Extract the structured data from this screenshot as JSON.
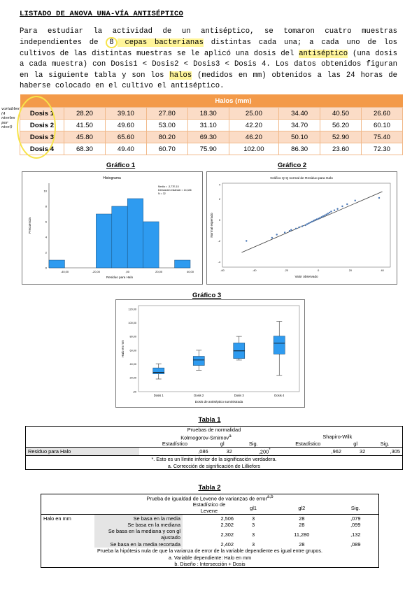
{
  "document": {
    "title": "LISTADO DE ANOVA UNA-VÍA ANTISÉPTICO",
    "intro": {
      "p1": "Para estudiar la actividad de un antiséptico, se tomaron cuatro muestras independientes de ",
      "p2": "8",
      "p3": " cepas bacterianas",
      "p4": " distintas cada una; a cada uno de los cultivos de las distintas muestras se le aplicó una dosis del ",
      "p5": "antiséptico",
      "p6": " (una dosis a cada muestra) con Dosis1 < Dosis2 < Dosis3 < Dosis 4. Los datos obtenidos figuran en la siguiente tabla y son los ",
      "p7": "halos",
      "p8": " (medidos en mm) obtenidos a las 24 horas de haberse colocado en el cultivo el antiséptico."
    },
    "handwritten_note": "variables (4 niveles por nivel)"
  },
  "halos_table": {
    "header": "Halos (mm)",
    "rows": [
      {
        "label": "Dosis 1",
        "values": [
          "28.20",
          "39.10",
          "27.80",
          "18.30",
          "25.00",
          "34.40",
          "40.50",
          "26.60"
        ]
      },
      {
        "label": "Dosis 2",
        "values": [
          "41.50",
          "49.60",
          "53.00",
          "31.10",
          "42.20",
          "34.70",
          "56.20",
          "60.10"
        ]
      },
      {
        "label": "Dosis 3",
        "values": [
          "45.80",
          "65.60",
          "80.20",
          "69.30",
          "46.20",
          "50.10",
          "52.90",
          "75.40"
        ]
      },
      {
        "label": "Dosis 4",
        "values": [
          "68.30",
          "49.40",
          "60.70",
          "75.90",
          "102.00",
          "86.30",
          "23.60",
          "72.30"
        ]
      }
    ]
  },
  "chart_data": [
    {
      "type": "bar",
      "caption": "Gráfico 1",
      "title": "Histograma",
      "xlabel": "Residuo para Halo",
      "ylabel": "Frecuencia",
      "legend": [
        "Media = -3,77E-15",
        "Desviación estándar = 14,346",
        "N = 32"
      ],
      "bin_edges": [
        -50,
        -40,
        -30,
        -20,
        -10,
        0,
        10,
        20,
        30,
        40
      ],
      "values": [
        1,
        0,
        0,
        7,
        8,
        9,
        6,
        0,
        1
      ],
      "xticks": [
        "-40,00",
        "-20,00",
        ",00",
        "20,00",
        "40,00"
      ],
      "yticks": [
        "0",
        "2",
        "4",
        "6",
        "8",
        "10"
      ],
      "ylim": [
        0,
        11
      ]
    },
    {
      "type": "scatter",
      "caption": "Gráfico 2",
      "title": "Gráfico Q-Q normal de Residuo para Halo",
      "xlabel": "Valor observado",
      "ylabel": "Normal esperado",
      "xticks": [
        "-60",
        "-40",
        "-20",
        "0",
        "20",
        "40"
      ],
      "yticks": [
        "-4",
        "-2",
        "0",
        "2",
        "4"
      ],
      "xlim": [
        -60,
        45
      ],
      "ylim": [
        -4.5,
        3.5
      ],
      "points": [
        [
          -45,
          -2
        ],
        [
          -29,
          -1.7
        ],
        [
          -26,
          -1.4
        ],
        [
          -21,
          -1.2
        ],
        [
          -18,
          -1.05
        ],
        [
          -17,
          -0.95
        ],
        [
          -14,
          -0.82
        ],
        [
          -12,
          -0.7
        ],
        [
          -10,
          -0.6
        ],
        [
          -8,
          -0.5
        ],
        [
          -7,
          -0.4
        ],
        [
          -6,
          -0.32
        ],
        [
          -5,
          -0.24
        ],
        [
          -4,
          -0.16
        ],
        [
          -3,
          -0.08
        ],
        [
          -2,
          0
        ],
        [
          -1,
          0.06
        ],
        [
          0,
          0.12
        ],
        [
          1,
          0.2
        ],
        [
          2,
          0.28
        ],
        [
          3,
          0.36
        ],
        [
          4,
          0.44
        ],
        [
          5,
          0.52
        ],
        [
          6,
          0.6
        ],
        [
          7,
          0.7
        ],
        [
          8,
          0.8
        ],
        [
          10,
          0.92
        ],
        [
          12,
          1.05
        ],
        [
          15,
          1.3
        ],
        [
          18,
          1.5
        ],
        [
          23,
          1.85
        ],
        [
          38,
          2.1
        ]
      ],
      "reference_line": [
        [
          -48,
          -3.1
        ],
        [
          40,
          2.7
        ]
      ]
    },
    {
      "type": "box",
      "caption": "Gráfico 3",
      "xlabel": "Dosis de antiséptico suministrada",
      "ylabel": "Halo en mm",
      "categories": [
        "Dosis 1",
        "Dosis 2",
        "Dosis 3",
        "Dosis 4"
      ],
      "boxes": [
        {
          "min": 18.3,
          "q1": 25.8,
          "median": 27.9,
          "q3": 34.4,
          "max": 40.5
        },
        {
          "min": 31.1,
          "q1": 38.1,
          "median": 45.9,
          "q3": 51.3,
          "max": 60.1
        },
        {
          "min": 45.8,
          "q1": 48.2,
          "median": 59.2,
          "q3": 70.7,
          "max": 80.2
        },
        {
          "min": 23.6,
          "q1": 54.6,
          "median": 70.3,
          "q3": 80.7,
          "max": 102
        }
      ],
      "yticks": [
        ",00",
        "20,00",
        "40,00",
        "60,00",
        "80,00",
        "100,00",
        "120,00"
      ],
      "ylim": [
        0,
        125
      ]
    }
  ],
  "tabla1": {
    "caption": "Tabla 1",
    "title": "Pruebas de normalidad",
    "group1": "Kolmogorov-Smirnov",
    "group1_sup": "a",
    "group2": "Shapiro-Wilk",
    "cols": [
      "Estadístico",
      "gl",
      "Sig.",
      "Estadístico",
      "gl",
      "Sig."
    ],
    "row_label": "Residuo para Halo",
    "row_values": [
      ",086",
      "32",
      ",200",
      ",962",
      "32",
      ",305"
    ],
    "star": "*",
    "notes": [
      "*. Esto es un límite inferior de la significación verdadera.",
      "a. Corrección de significación de Lilliefors"
    ]
  },
  "tabla2": {
    "caption": "Tabla 2",
    "title": "Prueba de igualdad de Levene de varianzas de error",
    "title_sup": "a,b",
    "col_stat": "Estadístico de Levene",
    "cols": [
      "gl1",
      "gl2",
      "Sig."
    ],
    "var_label": "Halo en mm",
    "rows": [
      {
        "label": "Se basa en la media",
        "values": [
          "2,506",
          "3",
          "28",
          ",079"
        ]
      },
      {
        "label": "Se basa en la mediana",
        "values": [
          "2,302",
          "3",
          "28",
          ",099"
        ]
      },
      {
        "label": "Se basa en la mediana y con gl ajustado",
        "values": [
          "2,302",
          "3",
          "11,280",
          ",132"
        ]
      },
      {
        "label": "Se basa en la media recortada",
        "values": [
          "2,402",
          "3",
          "28",
          ",089"
        ]
      }
    ],
    "notes": [
      "Prueba la hipótesis nula de que la varianza de error de la variable dependiente es igual entre grupos.",
      "a. Variable dependiente: Halo en mm",
      "b. Diseño : Intersección + Dosis"
    ]
  }
}
